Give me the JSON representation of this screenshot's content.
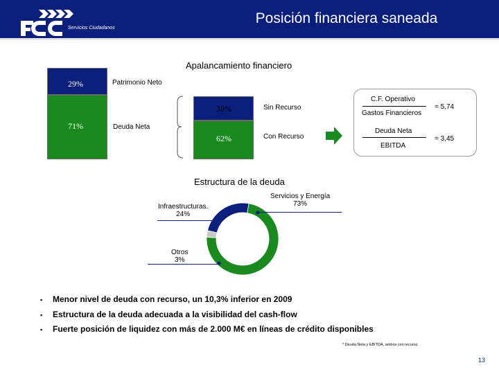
{
  "header": {
    "title": "Posición financiera saneada",
    "logo_text": "FCC",
    "logo_subtitle": "Servicios Ciudadanos"
  },
  "leverage": {
    "title": "Apalancamiento financiero",
    "equity": {
      "pct": "29%",
      "label": "Patrimonio Neto",
      "value": 29
    },
    "net_debt": {
      "pct": "71%",
      "label": "Deuda Neta",
      "value": 71
    },
    "non_recourse": {
      "pct": "38%",
      "label": "Sin Recurso",
      "value": 38
    },
    "recourse": {
      "pct": "62%",
      "label": "Con Recurso",
      "value": 62
    }
  },
  "ratios": {
    "r1_numerator": "C.F. Operativo",
    "r1_denominator": "Gastos Financieros",
    "r1_value": "= 5,74",
    "r2_numerator": "Deuda Neta",
    "r2_denominator": "EBITDA",
    "r2_value": "= 3,45"
  },
  "debt_structure": {
    "title": "Estructura de la deuda",
    "segments": [
      {
        "label": "Servicios y Energía",
        "pct": "73%",
        "value": 73,
        "color": "#1a8a1e"
      },
      {
        "label": "Infraestructuras.",
        "pct": "24%",
        "value": 24,
        "color": "#0a1f7c"
      },
      {
        "label": "Otros",
        "pct": "3%",
        "value": 3,
        "color": "#c8c8c8"
      }
    ]
  },
  "bullets": [
    {
      "marker": "▪",
      "text": "Menor nivel de deuda con recurso, un 10,3% inferior en 2009"
    },
    {
      "marker": "▪",
      "text": "Estructura de la deuda adecuada a la visibilidad del cash-flow"
    },
    {
      "marker": "▪",
      "text": "Fuerte posición de liquidez con más de 2.000 M€ en líneas de crédito disponibles"
    }
  ],
  "footnote": "* Deuda Neta y EBITDA, ambos con recurso",
  "page_number": "13",
  "colors": {
    "navy": "#0a1f7c",
    "green": "#1a8a1e",
    "grey": "#c8c8c8"
  }
}
